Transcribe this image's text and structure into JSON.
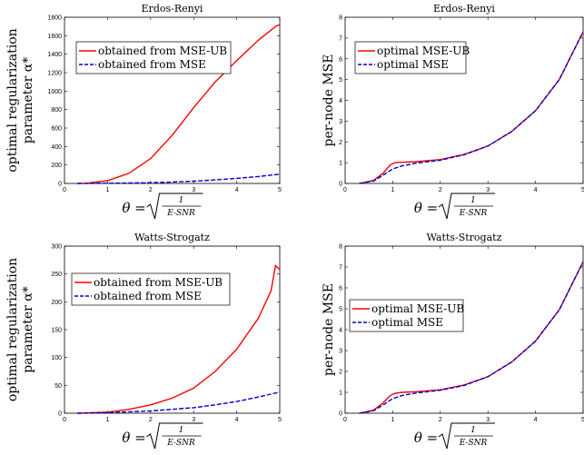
{
  "chart_data": [
    {
      "type": "line",
      "title": "Erdos-Renyi",
      "ylabel_line1": "optimal regularization",
      "ylabel_line2": "parameter α*",
      "xlabel": "θ = √(1/(E-SNR))",
      "xlim": [
        0,
        5
      ],
      "ylim": [
        0,
        1800
      ],
      "xticks": [
        0,
        1,
        2,
        3,
        4,
        5
      ],
      "yticks": [
        0,
        200,
        400,
        600,
        800,
        1000,
        1200,
        1400,
        1600,
        1800
      ],
      "legend_position": "upper-left",
      "grid": false,
      "series": [
        {
          "name": "obtained from MSE-UB",
          "color": "#ff0000",
          "dash": "solid",
          "x": [
            0.3,
            0.5,
            1.0,
            1.5,
            2.0,
            2.5,
            3.0,
            3.5,
            4.0,
            4.5,
            4.9,
            5.0
          ],
          "y": [
            0,
            2,
            30,
            110,
            270,
            520,
            820,
            1100,
            1330,
            1550,
            1700,
            1720
          ]
        },
        {
          "name": "obtained from MSE",
          "color": "#0000cc",
          "dash": "dashed",
          "x": [
            0.3,
            1.0,
            2.0,
            2.5,
            3.0,
            3.5,
            4.0,
            4.5,
            5.0
          ],
          "y": [
            0,
            2,
            8,
            15,
            25,
            38,
            55,
            75,
            100
          ]
        }
      ]
    },
    {
      "type": "line",
      "title": "Erdos-Renyi",
      "ylabel_line1": "per-node MSE",
      "ylabel_line2": "",
      "xlabel": "θ = √(1/(E-SNR))",
      "xlim": [
        0,
        5
      ],
      "ylim": [
        0,
        8
      ],
      "xticks": [
        0,
        1,
        2,
        3,
        4,
        5
      ],
      "yticks": [
        0,
        1,
        2,
        3,
        4,
        5,
        6,
        7,
        8
      ],
      "legend_position": "upper-left",
      "grid": false,
      "series": [
        {
          "name": "optimal MSE-UB",
          "color": "#ff0000",
          "dash": "solid",
          "x": [
            0.3,
            0.6,
            0.8,
            0.95,
            1.05,
            1.2,
            1.5,
            2.0,
            2.5,
            3.0,
            3.5,
            4.0,
            4.5,
            5.0
          ],
          "y": [
            0,
            0.15,
            0.5,
            0.9,
            1.0,
            1.02,
            1.05,
            1.15,
            1.4,
            1.8,
            2.5,
            3.5,
            5.0,
            7.3
          ]
        },
        {
          "name": "optimal MSE",
          "color": "#0000cc",
          "dash": "dashed",
          "x": [
            0.3,
            0.6,
            0.8,
            1.0,
            1.2,
            1.5,
            2.0,
            2.5,
            3.0,
            3.5,
            4.0,
            4.5,
            5.0
          ],
          "y": [
            0,
            0.12,
            0.4,
            0.7,
            0.85,
            0.98,
            1.12,
            1.38,
            1.8,
            2.5,
            3.5,
            5.0,
            7.3
          ]
        }
      ]
    },
    {
      "type": "line",
      "title": "Watts-Strogatz",
      "ylabel_line1": "optimal regularization",
      "ylabel_line2": "parameter α*",
      "xlabel": "θ = √(1/(E-SNR))",
      "xlim": [
        0,
        5
      ],
      "ylim": [
        0,
        300
      ],
      "xticks": [
        0,
        1,
        2,
        3,
        4,
        5
      ],
      "yticks": [
        0,
        50,
        100,
        150,
        200,
        250,
        300
      ],
      "legend_position": "center-left",
      "grid": false,
      "series": [
        {
          "name": "obtained from MSE-UB",
          "color": "#ff0000",
          "dash": "solid",
          "x": [
            0.3,
            1.0,
            1.5,
            2.0,
            2.5,
            3.0,
            3.5,
            4.0,
            4.5,
            4.8,
            4.9,
            5.0
          ],
          "y": [
            0,
            2,
            7,
            15,
            27,
            45,
            75,
            115,
            170,
            220,
            265,
            258
          ]
        },
        {
          "name": "obtained from MSE",
          "color": "#0000cc",
          "dash": "dashed",
          "x": [
            0.3,
            1.0,
            2.0,
            2.5,
            3.0,
            3.5,
            4.0,
            4.5,
            5.0
          ],
          "y": [
            0,
            1,
            4,
            7,
            10,
            15,
            21,
            29,
            38
          ]
        }
      ]
    },
    {
      "type": "line",
      "title": "Watts-Strogatz",
      "ylabel_line1": "per-node MSE",
      "ylabel_line2": "",
      "xlabel": "θ = √(1/(E-SNR))",
      "xlim": [
        0,
        5
      ],
      "ylim": [
        0,
        8
      ],
      "xticks": [
        0,
        1,
        2,
        3,
        4,
        5
      ],
      "yticks": [
        0,
        1,
        2,
        3,
        4,
        5,
        6,
        7,
        8
      ],
      "legend_position": "center-left",
      "grid": false,
      "series": [
        {
          "name": "optimal MSE-UB",
          "color": "#ff0000",
          "dash": "solid",
          "x": [
            0.3,
            0.6,
            0.8,
            0.95,
            1.05,
            1.2,
            1.5,
            2.0,
            2.5,
            3.0,
            3.5,
            4.0,
            4.5,
            5.0
          ],
          "y": [
            0,
            0.15,
            0.5,
            0.85,
            0.95,
            1.0,
            1.03,
            1.12,
            1.35,
            1.75,
            2.45,
            3.45,
            4.95,
            7.25
          ]
        },
        {
          "name": "optimal MSE",
          "color": "#0000cc",
          "dash": "dashed",
          "x": [
            0.3,
            0.6,
            0.8,
            1.0,
            1.2,
            1.5,
            2.0,
            2.5,
            3.0,
            3.5,
            4.0,
            4.5,
            5.0
          ],
          "y": [
            0,
            0.12,
            0.4,
            0.7,
            0.85,
            0.97,
            1.1,
            1.33,
            1.75,
            2.45,
            3.45,
            4.95,
            7.25
          ]
        }
      ]
    }
  ]
}
